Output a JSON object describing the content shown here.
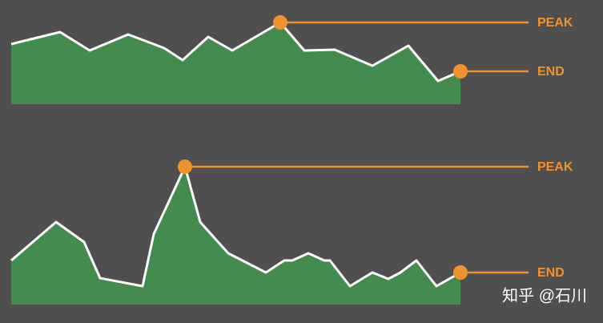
{
  "chart_data": [
    {
      "type": "area",
      "annotations": [
        "PEAK",
        "END"
      ],
      "x": [
        0,
        61,
        98,
        146,
        191,
        214,
        246,
        276,
        336,
        366,
        404,
        451,
        496,
        533,
        561
      ],
      "values": [
        75,
        90,
        67,
        87,
        70,
        55,
        84,
        67,
        102,
        67,
        68,
        48,
        73,
        29,
        41
      ],
      "xlim": [
        0,
        561
      ],
      "ylim": [
        0,
        130
      ],
      "color": "#438b4f",
      "line_color": "#ffffff",
      "annotation_color": "#f0922e"
    },
    {
      "type": "area",
      "annotations": [
        "PEAK",
        "END"
      ],
      "x": [
        0,
        56,
        91,
        111,
        164,
        178,
        217,
        236,
        271,
        318,
        341,
        351,
        371,
        391,
        398,
        423,
        451,
        471,
        486,
        506,
        531,
        561
      ],
      "values": [
        55,
        103,
        78,
        33,
        23,
        88,
        172,
        103,
        64,
        40,
        55,
        55,
        64,
        55,
        55,
        23,
        40,
        32,
        40,
        55,
        23,
        40
      ],
      "xlim": [
        0,
        561
      ],
      "ylim": [
        0,
        200
      ],
      "color": "#438b4f",
      "line_color": "#ffffff",
      "annotation_color": "#f0922e"
    }
  ],
  "watermark": "知乎 @石川"
}
